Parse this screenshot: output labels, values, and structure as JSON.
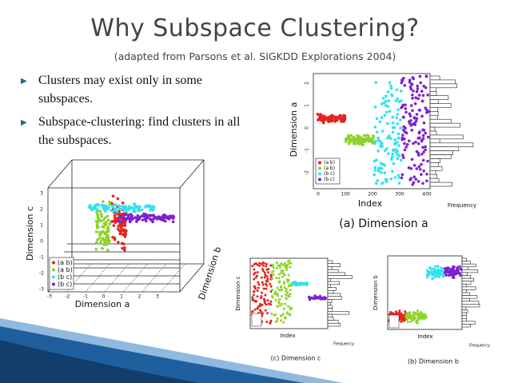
{
  "header": {
    "title": "Why Subspace Clustering?",
    "subtitle": "(adapted from Parsons et al. SIGKDD Explorations 2004)"
  },
  "bullets": [
    "Clusters may exist only in some subspaces.",
    "Subspace-clustering: find clusters in all the subspaces."
  ],
  "figure_3d": {
    "xlabel": "Dimension a",
    "ylabel": "Dimension c",
    "zlabel": "Dimension b",
    "xticks": [
      "-3",
      "-2",
      "-1",
      "0",
      "1",
      "2",
      "3"
    ],
    "yticks": [
      "-3",
      "-2",
      "-1",
      "0",
      "1",
      "2",
      "3"
    ],
    "legend": [
      "(a b)",
      "(a b)",
      "(b c)",
      "(b c)"
    ]
  },
  "figure_a": {
    "caption": "(a) Dimension a",
    "xlabel": "Index",
    "ylabel": "Dimension a",
    "hist_label": "Frequency",
    "xticks": [
      "0",
      "100",
      "200",
      "300",
      "400"
    ],
    "yticks": [
      "-2",
      "-1",
      "0",
      "1",
      "2"
    ],
    "legend": [
      "(a b)",
      "(a b)",
      "(b c)",
      "(b c)"
    ]
  },
  "figure_c": {
    "caption": "(c) Dimension c",
    "xlabel": "Index",
    "ylabel": "Dimension c",
    "hist_label": "Frequency"
  },
  "figure_b": {
    "caption": "(b) Dimension b",
    "xlabel": "Index",
    "ylabel": "Dimension b",
    "hist_label": "Frequency"
  }
}
